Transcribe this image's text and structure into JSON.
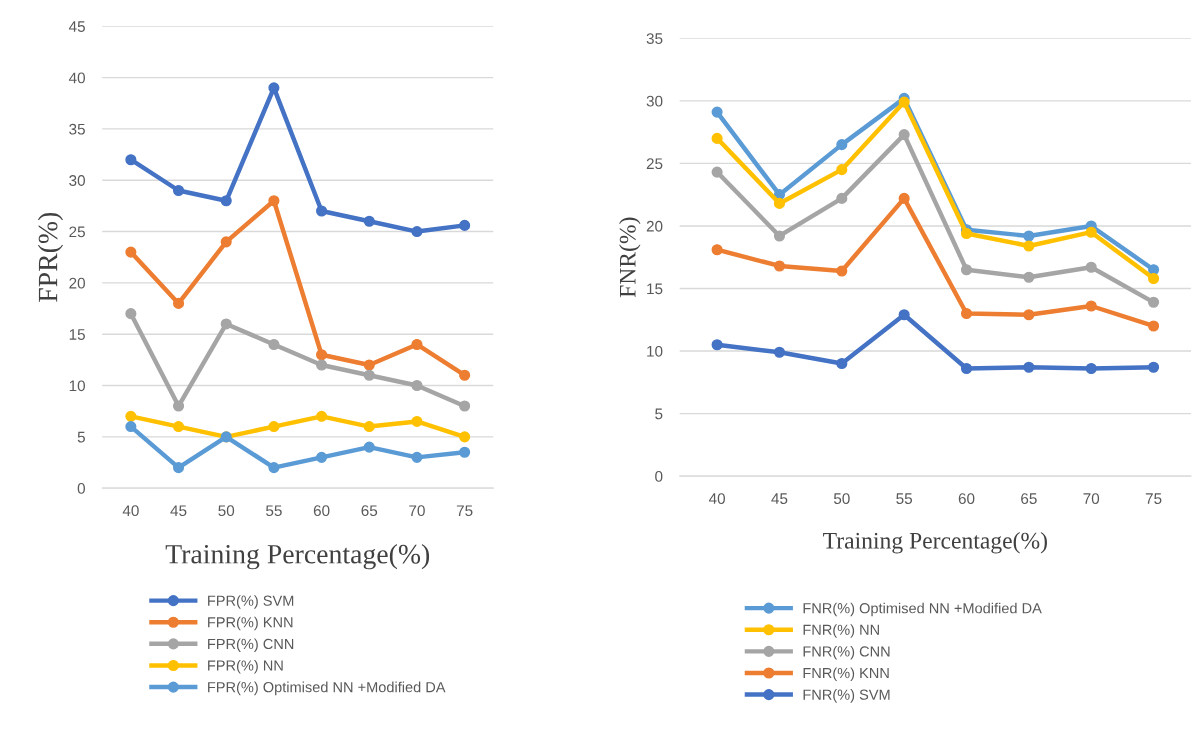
{
  "chart_data": [
    {
      "type": "line",
      "xlabel": "Training Percentage(%)",
      "ylabel": "FPR(%)",
      "categories": [
        "40",
        "45",
        "50",
        "55",
        "60",
        "65",
        "70",
        "75"
      ],
      "ylim": [
        0,
        45
      ],
      "yticks": [
        0,
        5,
        10,
        15,
        20,
        25,
        30,
        35,
        40,
        45
      ],
      "grid": "y",
      "legend": "bottom",
      "marker": "circle",
      "line_style": "solid",
      "series": [
        {
          "name": "FPR(%) SVM",
          "color": "#4472c4",
          "values": [
            32,
            29,
            28,
            39,
            27,
            26,
            25,
            25.6
          ]
        },
        {
          "name": "FPR(%) KNN",
          "color": "#ed7d31",
          "values": [
            23,
            18,
            24,
            28,
            13,
            12,
            14,
            11
          ]
        },
        {
          "name": "FPR(%) CNN",
          "color": "#a5a5a5",
          "values": [
            17,
            8,
            16,
            14,
            12,
            11,
            10,
            8
          ]
        },
        {
          "name": "FPR(%) NN",
          "color": "#ffc000",
          "values": [
            7,
            6,
            5,
            6,
            7,
            6,
            6.5,
            5
          ]
        },
        {
          "name": "FPR(%) Optimised NN +Modified DA",
          "color": "#5b9bd5",
          "values": [
            6,
            2,
            5,
            2,
            3,
            4,
            3,
            3.5
          ]
        }
      ]
    },
    {
      "type": "line",
      "xlabel": "Training Percentage(%)",
      "ylabel": "FNR(%)",
      "categories": [
        "40",
        "45",
        "50",
        "55",
        "60",
        "65",
        "70",
        "75"
      ],
      "ylim": [
        0,
        35
      ],
      "yticks": [
        0,
        5,
        10,
        15,
        20,
        25,
        30,
        35
      ],
      "grid": "y",
      "legend": "bottom",
      "marker": "circle",
      "line_style": "solid",
      "series": [
        {
          "name": "FNR(%) Optimised NN +Modified DA",
          "color": "#5b9bd5",
          "values": [
            29.1,
            22.5,
            26.5,
            30.2,
            19.7,
            19.2,
            20.0,
            16.5
          ]
        },
        {
          "name": "FNR(%) NN",
          "color": "#ffc000",
          "values": [
            27,
            21.8,
            24.5,
            29.9,
            19.4,
            18.4,
            19.5,
            15.8
          ]
        },
        {
          "name": "FNR(%) CNN",
          "color": "#a5a5a5",
          "values": [
            24.3,
            19.2,
            22.2,
            27.3,
            16.5,
            15.9,
            16.7,
            13.9
          ]
        },
        {
          "name": "FNR(%) KNN",
          "color": "#ed7d31",
          "values": [
            18.1,
            16.8,
            16.4,
            22.2,
            13.0,
            12.9,
            13.6,
            12.0
          ]
        },
        {
          "name": "FNR(%) SVM",
          "color": "#4472c4",
          "values": [
            10.5,
            9.9,
            9.0,
            12.9,
            8.6,
            8.7,
            8.6,
            8.7
          ]
        }
      ]
    }
  ]
}
